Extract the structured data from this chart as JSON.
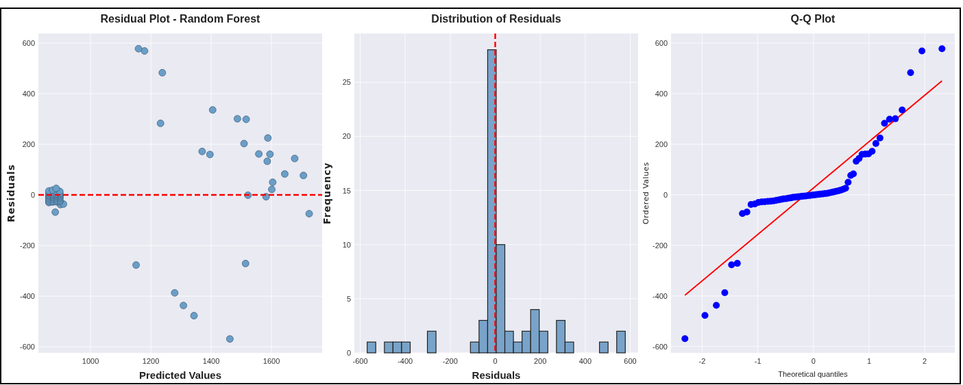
{
  "chart_data": [
    {
      "type": "scatter",
      "title": "Residual Plot - Random Forest",
      "xlabel": "Predicted Values",
      "ylabel": "Residuals",
      "color": "#6a9ec8",
      "marker": "circle",
      "grid": true,
      "xlim": [
        827,
        1768
      ],
      "ylim": [
        -624,
        638
      ],
      "xticks": [
        1000,
        1200,
        1400,
        1600
      ],
      "yticks": [
        -600,
        -400,
        -200,
        0,
        200,
        400,
        600
      ],
      "x": [
        1462,
        1343,
        1308,
        1279,
        1151,
        1514,
        1725,
        883,
        900,
        910,
        862,
        874,
        886,
        898,
        862,
        874,
        886,
        898,
        862,
        874,
        886,
        898,
        862,
        874,
        886,
        898,
        1582,
        862,
        874,
        886,
        898,
        862,
        1522,
        874,
        886,
        898,
        862,
        874,
        886,
        898,
        862,
        874,
        886,
        898,
        862,
        874,
        1601,
        886,
        1604,
        1706,
        1644,
        1586,
        1677,
        1396,
        1595,
        1558,
        1370,
        1509,
        1588,
        1232,
        1516,
        1487,
        1405,
        1238,
        1179,
        1159
      ],
      "values": [
        -569,
        -477,
        -437,
        -387,
        -277,
        -271,
        -74,
        -68,
        -38,
        -36,
        -30,
        -28,
        -27,
        -26,
        -25,
        -24,
        -22,
        -20,
        -18,
        -16,
        -15,
        -13,
        -12,
        -10,
        -9,
        -8,
        -7,
        -6,
        -5,
        -4,
        -3,
        -2,
        -1,
        0,
        1,
        2,
        3,
        4,
        5,
        6,
        8,
        10,
        12,
        14,
        16,
        19,
        22,
        26,
        50,
        77,
        83,
        133,
        144,
        160,
        161,
        162,
        172,
        203,
        225,
        283,
        299,
        301,
        336,
        483,
        569,
        578
      ],
      "ref_lines": [
        {
          "axis": "y",
          "value": 0,
          "color": "#ff0000",
          "line_style": "dashed"
        }
      ]
    },
    {
      "type": "histogram",
      "title": "Distribution of Residuals",
      "xlabel": "Residuals",
      "ylabel": "Frequency",
      "color": "#79a3c9",
      "grid": true,
      "xlim": [
        -626,
        635
      ],
      "ylim": [
        0,
        29.5
      ],
      "xticks": [
        -600,
        -400,
        -200,
        0,
        200,
        400,
        600
      ],
      "yticks": [
        0,
        5,
        10,
        15,
        20,
        25
      ],
      "bins": [
        -569,
        -530.8,
        -492.5,
        -454.3,
        -416.1,
        -377.8,
        -339.6,
        -301.4,
        -263.1,
        -224.9,
        -186.7,
        -148.4,
        -110.2,
        -72,
        -33.7,
        4.5,
        42.7,
        81,
        119.2,
        157.4,
        195.7,
        233.9,
        272.1,
        310.4,
        348.6,
        386.8,
        425.1,
        463.3,
        501.5,
        539.8,
        578
      ],
      "values": [
        1,
        0,
        1,
        1,
        1,
        0,
        0,
        2,
        0,
        0,
        0,
        0,
        1,
        3,
        28,
        10,
        2,
        1,
        2,
        4,
        2,
        0,
        3,
        1,
        0,
        0,
        0,
        1,
        0,
        2
      ],
      "ref_lines": [
        {
          "axis": "x",
          "value": 0,
          "color": "#ff0000",
          "line_style": "dashed"
        }
      ]
    },
    {
      "type": "scatter",
      "title": "Q-Q Plot",
      "xlabel": "Theoretical quantiles",
      "ylabel": "Ordered Values",
      "grid": true,
      "xlim": [
        -2.56,
        2.54
      ],
      "ylim": [
        -625,
        638
      ],
      "xticks": [
        -2,
        -1,
        0,
        1,
        2
      ],
      "yticks": [
        -600,
        -400,
        -200,
        0,
        200,
        400,
        600
      ],
      "series": [
        {
          "type": "line",
          "color": "#ff0000",
          "x": [
            -2.31,
            2.31
          ],
          "values": [
            -397,
            451
          ]
        },
        {
          "type": "scatter",
          "color": "#0000ff",
          "marker": "circle",
          "x": [
            -2.31,
            -1.95,
            -1.746,
            -1.594,
            -1.472,
            -1.368,
            -1.277,
            -1.196,
            -1.122,
            -1.054,
            -0.99,
            -0.931,
            -0.874,
            -0.82,
            -0.768,
            -0.718,
            -0.67,
            -0.623,
            -0.578,
            -0.534,
            -0.491,
            -0.449,
            -0.408,
            -0.367,
            -0.327,
            -0.287,
            -0.248,
            -0.21,
            -0.171,
            -0.133,
            -0.095,
            -0.057,
            -0.019,
            0.019,
            0.057,
            0.095,
            0.133,
            0.171,
            0.21,
            0.248,
            0.287,
            0.327,
            0.367,
            0.408,
            0.449,
            0.491,
            0.534,
            0.578,
            0.623,
            0.67,
            0.718,
            0.768,
            0.82,
            0.874,
            0.931,
            0.99,
            1.054,
            1.122,
            1.196,
            1.277,
            1.368,
            1.472,
            1.594,
            1.746,
            1.95,
            2.31
          ],
          "values": [
            -569,
            -477,
            -437,
            -387,
            -277,
            -271,
            -74,
            -68,
            -38,
            -36,
            -30,
            -28,
            -27,
            -26,
            -25,
            -24,
            -22,
            -20,
            -18,
            -16,
            -15,
            -13,
            -12,
            -10,
            -9,
            -8,
            -7,
            -6,
            -5,
            -4,
            -3,
            -2,
            -1,
            0,
            1,
            2,
            3,
            4,
            5,
            6,
            8,
            10,
            12,
            14,
            16,
            19,
            22,
            26,
            50,
            77,
            83,
            133,
            144,
            160,
            161,
            162,
            172,
            203,
            225,
            283,
            299,
            301,
            336,
            483,
            569,
            578
          ]
        }
      ]
    }
  ]
}
